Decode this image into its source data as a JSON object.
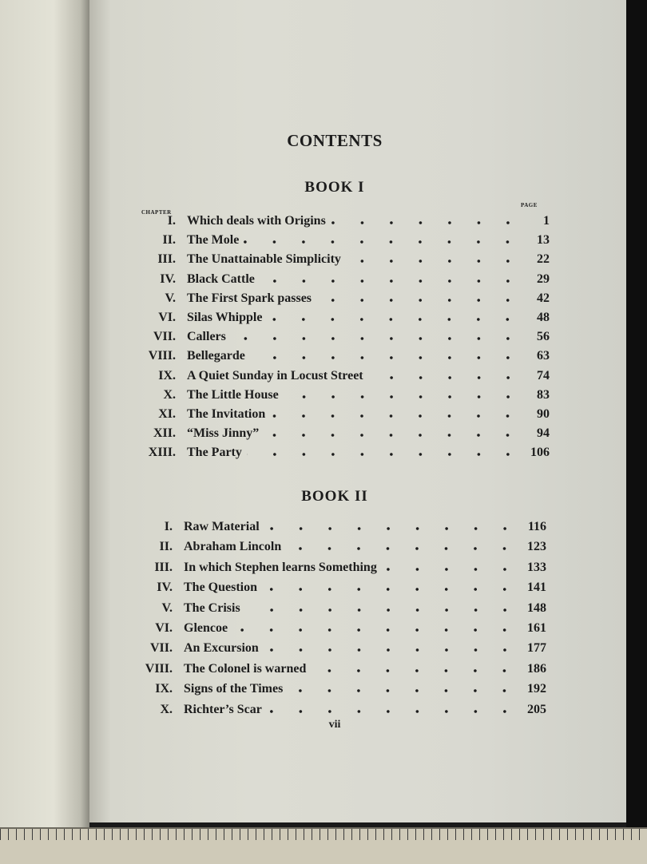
{
  "title": "CONTENTS",
  "chapter_label": "CHAPTER",
  "page_label": "PAGE",
  "books": [
    {
      "heading": "BOOK I",
      "chapters": [
        {
          "num": "I.",
          "title": "Which deals with Origins",
          "page": "1"
        },
        {
          "num": "II.",
          "title": "The Mole",
          "page": "13"
        },
        {
          "num": "III.",
          "title": "The Unattainable Simplicity",
          "page": "22"
        },
        {
          "num": "IV.",
          "title": "Black Cattle",
          "page": "29"
        },
        {
          "num": "V.",
          "title": "The First Spark passes",
          "page": "42"
        },
        {
          "num": "VI.",
          "title": "Silas Whipple",
          "page": "48"
        },
        {
          "num": "VII.",
          "title": "Callers",
          "page": "56"
        },
        {
          "num": "VIII.",
          "title": "Bellegarde",
          "page": "63"
        },
        {
          "num": "IX.",
          "title": "A Quiet Sunday in Locust Street",
          "page": "74"
        },
        {
          "num": "X.",
          "title": "The Little House",
          "page": "83"
        },
        {
          "num": "XI.",
          "title": "The Invitation",
          "page": "90"
        },
        {
          "num": "XII.",
          "title": "“Miss Jinny”",
          "page": "94"
        },
        {
          "num": "XIII.",
          "title": "The Party",
          "page": "106"
        }
      ]
    },
    {
      "heading": "BOOK II",
      "chapters": [
        {
          "num": "I.",
          "title": "Raw Material",
          "page": "116"
        },
        {
          "num": "II.",
          "title": "Abraham Lincoln",
          "page": "123"
        },
        {
          "num": "III.",
          "title": "In which Stephen learns Something",
          "page": "133"
        },
        {
          "num": "IV.",
          "title": "The Question",
          "page": "141"
        },
        {
          "num": "V.",
          "title": "The Crisis",
          "page": "148"
        },
        {
          "num": "VI.",
          "title": "Glencoe",
          "page": "161"
        },
        {
          "num": "VII.",
          "title": "An Excursion",
          "page": "177"
        },
        {
          "num": "VIII.",
          "title": "The Colonel is warned",
          "page": "186"
        },
        {
          "num": "IX.",
          "title": "Signs of the Times",
          "page": "192"
        },
        {
          "num": "X.",
          "title": "Richter’s Scar",
          "page": "205"
        }
      ]
    }
  ],
  "folio": "vii"
}
